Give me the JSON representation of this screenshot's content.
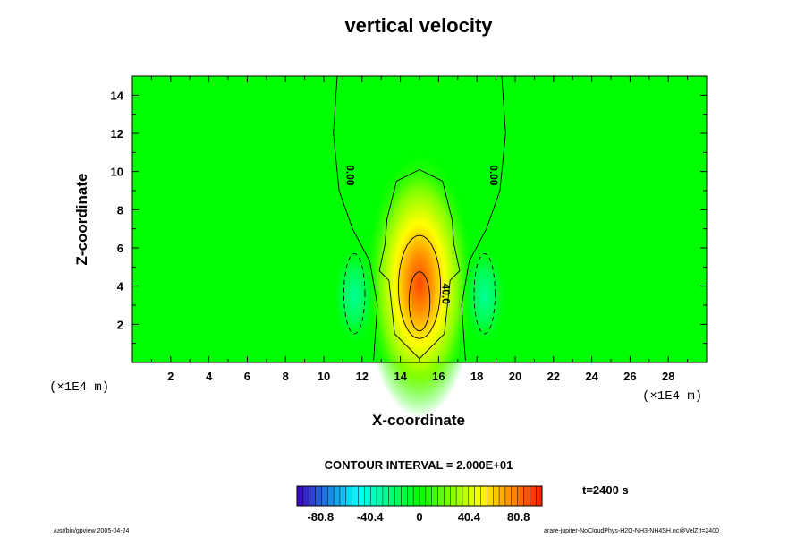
{
  "chart_data": {
    "type": "heatmap",
    "title": "vertical velocity",
    "xlabel": "X-coordinate",
    "ylabel": "Z-coordinate",
    "x_unit": "(×1E4 m)",
    "y_unit": "(×1E4 m)",
    "xlim": [
      0,
      30
    ],
    "ylim": [
      0,
      15
    ],
    "x_ticks": [
      2,
      4,
      6,
      8,
      10,
      12,
      14,
      16,
      18,
      20,
      22,
      24,
      26,
      28
    ],
    "y_ticks": [
      2,
      4,
      6,
      8,
      10,
      12,
      14
    ],
    "contour_interval_label": "CONTOUR INTERVAL = 2.000E+01",
    "contour_labels": [
      "0.00",
      "0.00",
      "40.0"
    ],
    "field": {
      "updraft_center": [
        15,
        3.2
      ],
      "updraft_peak": 95,
      "downdraft_centers": [
        [
          11.6,
          3.5
        ],
        [
          18.4,
          3.5
        ]
      ],
      "downdraft_min": -30
    },
    "colorbar": {
      "min": -100,
      "max": 100,
      "tick_labels": [
        "-80.8",
        "-40.4",
        "0",
        "40.4",
        "80.8"
      ],
      "tick_values": [
        -80.8,
        -40.4,
        0,
        40.4,
        80.8
      ]
    },
    "time_label": "t=2400 s"
  },
  "footer": {
    "left": "/usr/bin/gpview 2005-04-24",
    "right": "arare-jupiter-NoCloudPhys-H2O-NH3-NH4SH.nc@VelZ,t=2400"
  },
  "colors": {
    "background": "#00ff00",
    "positive": "#ff0000",
    "negative": "#00ffff"
  }
}
